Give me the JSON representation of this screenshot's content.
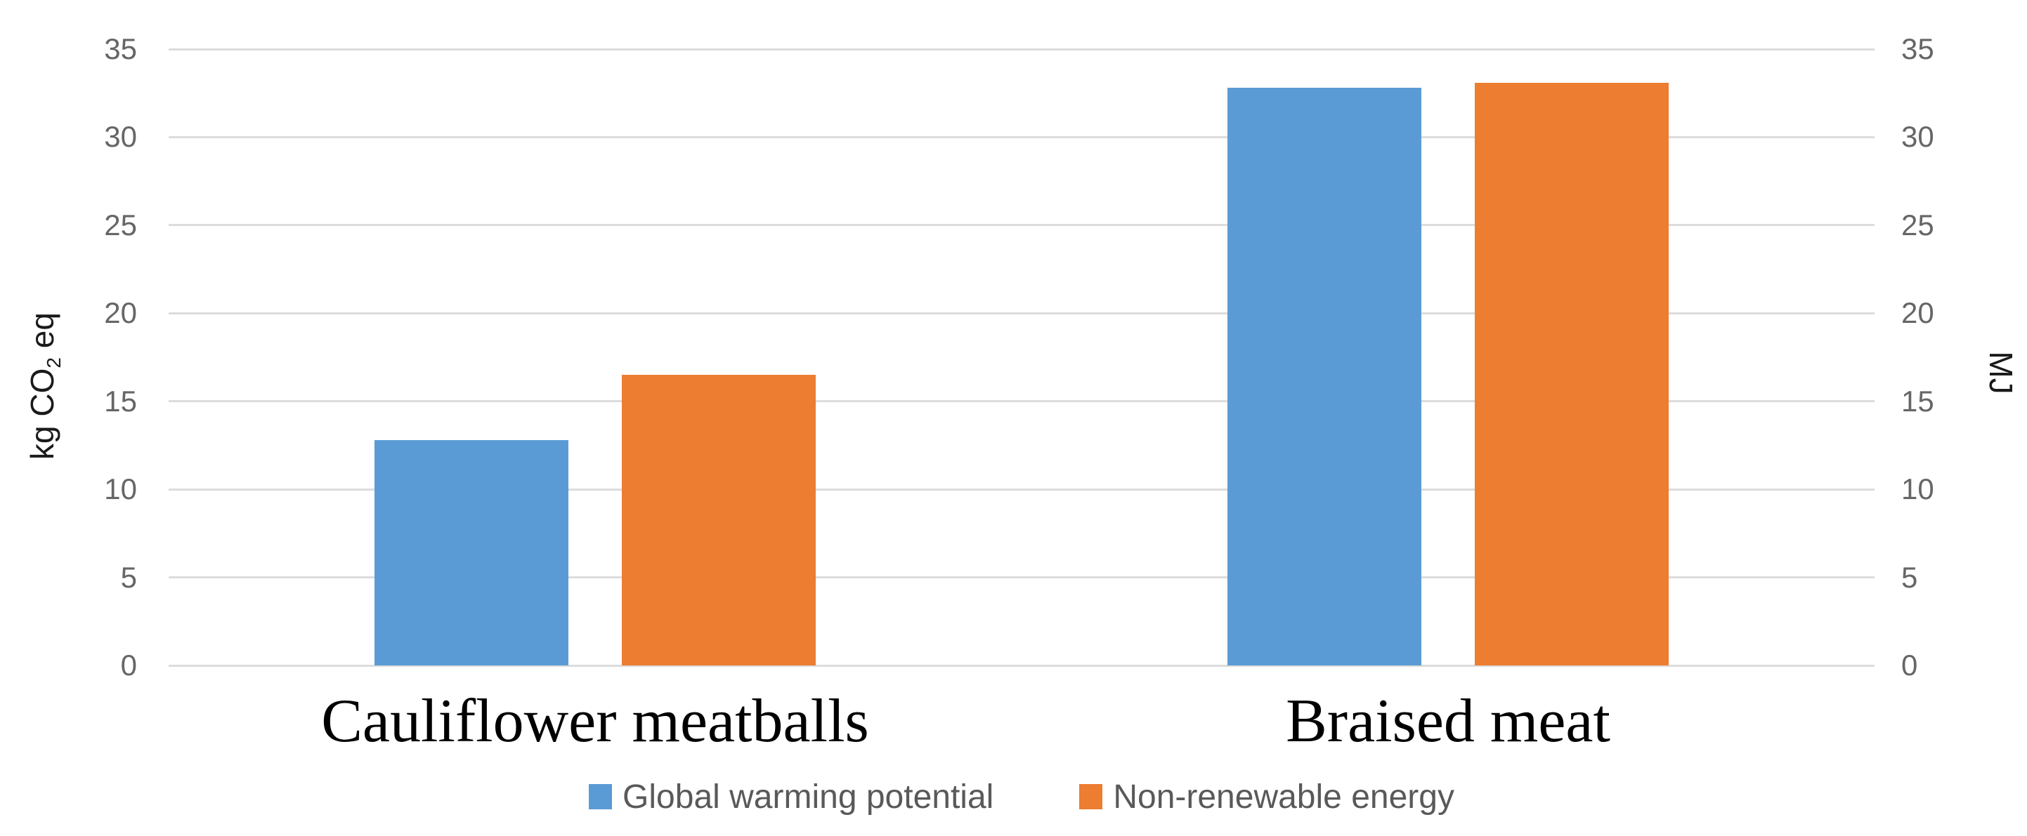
{
  "chart_data": {
    "type": "bar",
    "title": "",
    "categories": [
      "Cauliflower meatballs",
      "Braised meat"
    ],
    "series": [
      {
        "name": "Global warming potential",
        "color": "#5B9BD5",
        "values": [
          12.8,
          32.8
        ]
      },
      {
        "name": "Non-renewable energy",
        "color": "#ED7D31",
        "values": [
          16.5,
          33.1
        ]
      }
    ],
    "left_axis": {
      "title_full": "kg CO2 eq",
      "title_prefix": "kg CO",
      "title_sub": "2",
      "title_suffix": " eq",
      "min": 0,
      "max": 35,
      "step": 5,
      "ticks": [
        35,
        30,
        25,
        20,
        15,
        10,
        5,
        0
      ]
    },
    "right_axis": {
      "title": "MJ",
      "min": 0,
      "max": 35,
      "step": 5,
      "ticks": [
        35,
        30,
        25,
        20,
        15,
        10,
        5,
        0
      ]
    },
    "legend_position": "bottom",
    "grid": true,
    "colors": {
      "gridline": "#dcdcdc",
      "tick_text": "#666666",
      "axis_title_text": "#1a1a1a",
      "category_text": "#000000",
      "legend_text": "#595959",
      "background": "#ffffff"
    }
  }
}
